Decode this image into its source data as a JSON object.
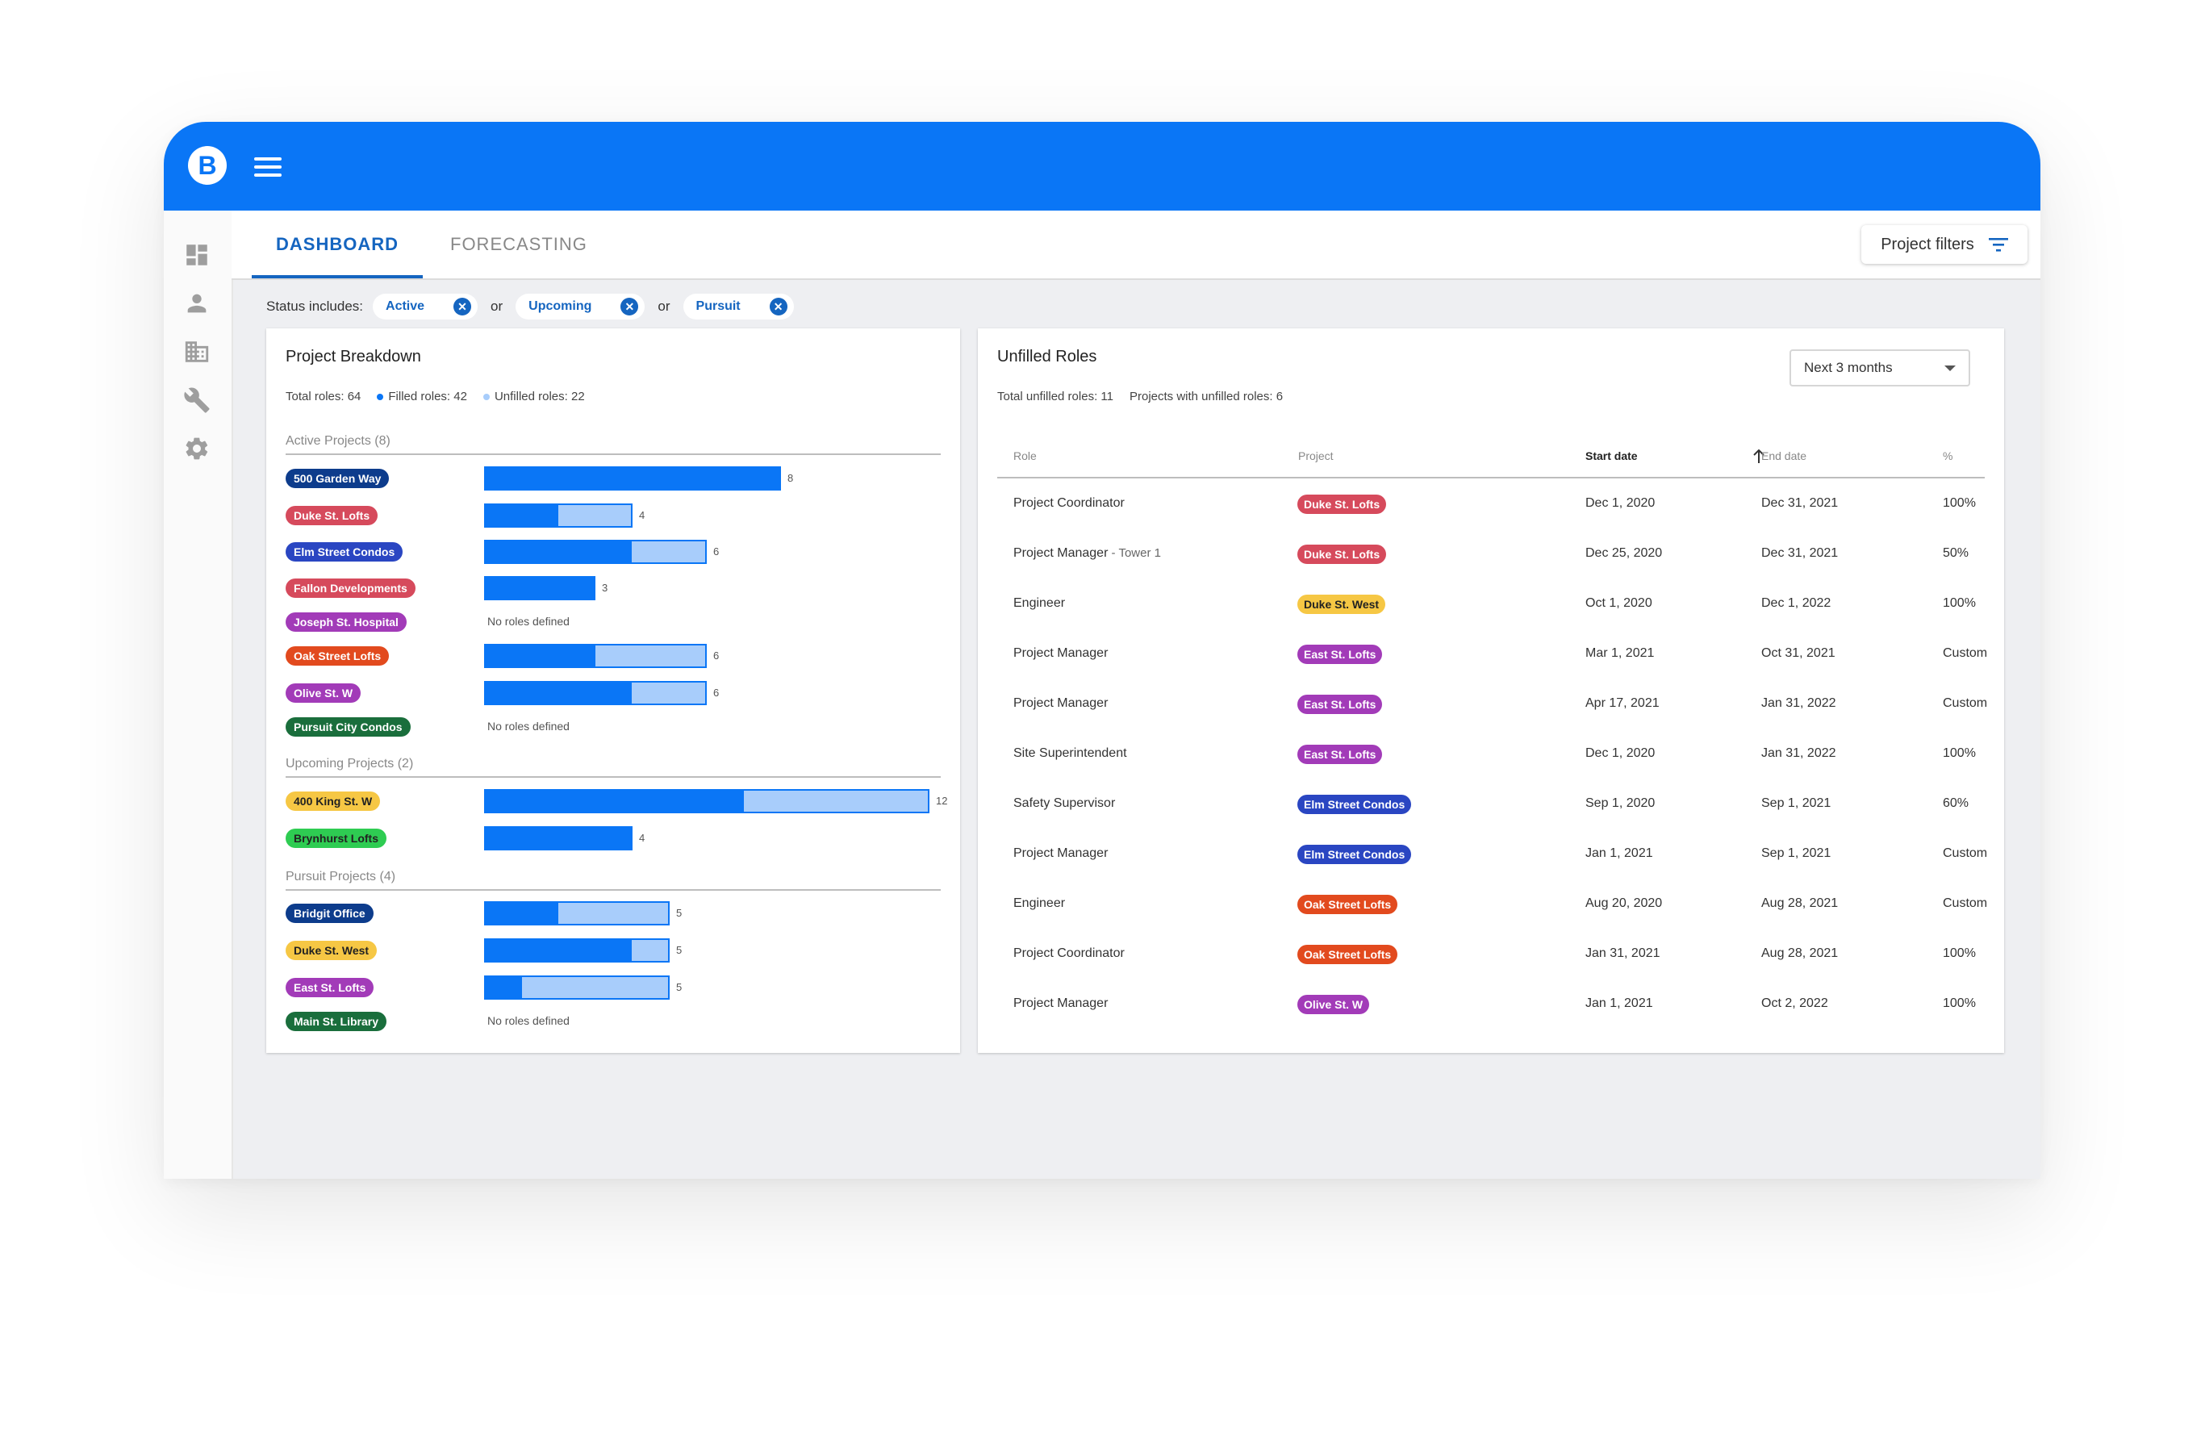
{
  "app": {
    "logo_letter": "B"
  },
  "colors": {
    "brand_blue": "#0a76f6",
    "filled": "#0a76f6",
    "unfilled": "#a8cdfb"
  },
  "tabs": [
    {
      "label": "DASHBOARD",
      "active": true
    },
    {
      "label": "FORECASTING",
      "active": false
    }
  ],
  "project_filters_label": "Project filters",
  "status_filter": {
    "label": "Status includes:",
    "chips": [
      "Active",
      "Upcoming",
      "Pursuit"
    ],
    "separator": "or"
  },
  "sidebar_icons": [
    "dashboard-icon",
    "person-icon",
    "building-icon",
    "wrench-icon",
    "settings-icon"
  ],
  "breakdown": {
    "title": "Project Breakdown",
    "total_roles": "Total roles: 64",
    "filled_roles": "Filled roles: 42",
    "unfilled_roles": "Unfilled roles: 22",
    "no_roles_text": "No roles defined",
    "sections": [
      {
        "title": "Active Projects (8)",
        "projects": [
          {
            "name": "500 Garden Way",
            "color": "#0d3c8c",
            "total": 8,
            "filled": 8
          },
          {
            "name": "Duke St. Lofts",
            "color": "#d64a5c",
            "total": 4,
            "filled": 2
          },
          {
            "name": "Elm Street Condos",
            "color": "#2a46c2",
            "total": 6,
            "filled": 4
          },
          {
            "name": "Fallon Developments",
            "color": "#d64a5c",
            "total": 3,
            "filled": 3
          },
          {
            "name": "Joseph St. Hospital",
            "color": "#a23bb8",
            "total": 0,
            "filled": 0
          },
          {
            "name": "Oak Street Lofts",
            "color": "#e24a1e",
            "total": 6,
            "filled": 3
          },
          {
            "name": "Olive St. W",
            "color": "#a23bb8",
            "total": 6,
            "filled": 4
          },
          {
            "name": "Pursuit City Condos",
            "color": "#1a6e3c",
            "total": 0,
            "filled": 0
          }
        ]
      },
      {
        "title": "Upcoming Projects (2)",
        "projects": [
          {
            "name": "400 King St. W",
            "color": "#f6c744",
            "text_color": "#222",
            "total": 12,
            "filled": 7
          },
          {
            "name": "Brynhurst Lofts",
            "color": "#2ecc52",
            "text_color": "#222",
            "total": 4,
            "filled": 4
          }
        ]
      },
      {
        "title": "Pursuit Projects (4)",
        "projects": [
          {
            "name": "Bridgit Office",
            "color": "#0d3c8c",
            "total": 5,
            "filled": 2
          },
          {
            "name": "Duke St. West",
            "color": "#f6c744",
            "text_color": "#222",
            "total": 5,
            "filled": 4
          },
          {
            "name": "East St. Lofts",
            "color": "#a23bb8",
            "total": 5,
            "filled": 1
          },
          {
            "name": "Main St. Library",
            "color": "#1a6e3c",
            "total": 0,
            "filled": 0
          }
        ]
      }
    ]
  },
  "unfilled": {
    "title": "Unfilled Roles",
    "total_unfilled": "Total unfilled roles: 11",
    "projects_with_unfilled": "Projects with unfilled roles: 6",
    "range_select": "Next 3 months",
    "columns": [
      "Role",
      "Project",
      "Start date",
      "End date",
      "%"
    ],
    "sorted_column": "Start date",
    "rows": [
      {
        "role": "Project Coordinator",
        "sub": "",
        "project": "Duke St. Lofts",
        "color": "#d64a5c",
        "start": "Dec 1, 2020",
        "end": "Dec 31, 2021",
        "pct": "100%"
      },
      {
        "role": "Project Manager",
        "sub": " - Tower 1",
        "project": "Duke St. Lofts",
        "color": "#d64a5c",
        "start": "Dec 25, 2020",
        "end": "Dec 31, 2021",
        "pct": "50%"
      },
      {
        "role": "Engineer",
        "sub": "",
        "project": "Duke St. West",
        "color": "#f6c744",
        "text_color": "#222",
        "start": "Oct 1, 2020",
        "end": "Dec 1, 2022",
        "pct": "100%"
      },
      {
        "role": "Project Manager",
        "sub": "",
        "project": "East St. Lofts",
        "color": "#a23bb8",
        "start": "Mar 1, 2021",
        "end": "Oct 31, 2021",
        "pct": "Custom"
      },
      {
        "role": "Project Manager",
        "sub": "",
        "project": "East St. Lofts",
        "color": "#a23bb8",
        "start": "Apr 17, 2021",
        "end": "Jan 31, 2022",
        "pct": "Custom"
      },
      {
        "role": "Site Superintendent",
        "sub": "",
        "project": "East St. Lofts",
        "color": "#a23bb8",
        "start": "Dec 1, 2020",
        "end": "Jan 31, 2022",
        "pct": "100%"
      },
      {
        "role": "Safety Supervisor",
        "sub": "",
        "project": "Elm Street Condos",
        "color": "#2a46c2",
        "start": "Sep 1, 2020",
        "end": "Sep 1, 2021",
        "pct": "60%"
      },
      {
        "role": "Project Manager",
        "sub": "",
        "project": "Elm Street Condos",
        "color": "#2a46c2",
        "start": "Jan 1, 2021",
        "end": "Sep 1, 2021",
        "pct": "Custom"
      },
      {
        "role": "Engineer",
        "sub": "",
        "project": "Oak Street Lofts",
        "color": "#e24a1e",
        "start": "Aug 20, 2020",
        "end": "Aug 28, 2021",
        "pct": "Custom"
      },
      {
        "role": "Project Coordinator",
        "sub": "",
        "project": "Oak Street Lofts",
        "color": "#e24a1e",
        "start": "Jan 31, 2021",
        "end": "Aug 28, 2021",
        "pct": "100%"
      },
      {
        "role": "Project Manager",
        "sub": "",
        "project": "Olive St. W",
        "color": "#a23bb8",
        "start": "Jan 1, 2021",
        "end": "Oct 2, 2022",
        "pct": "100%"
      }
    ]
  }
}
